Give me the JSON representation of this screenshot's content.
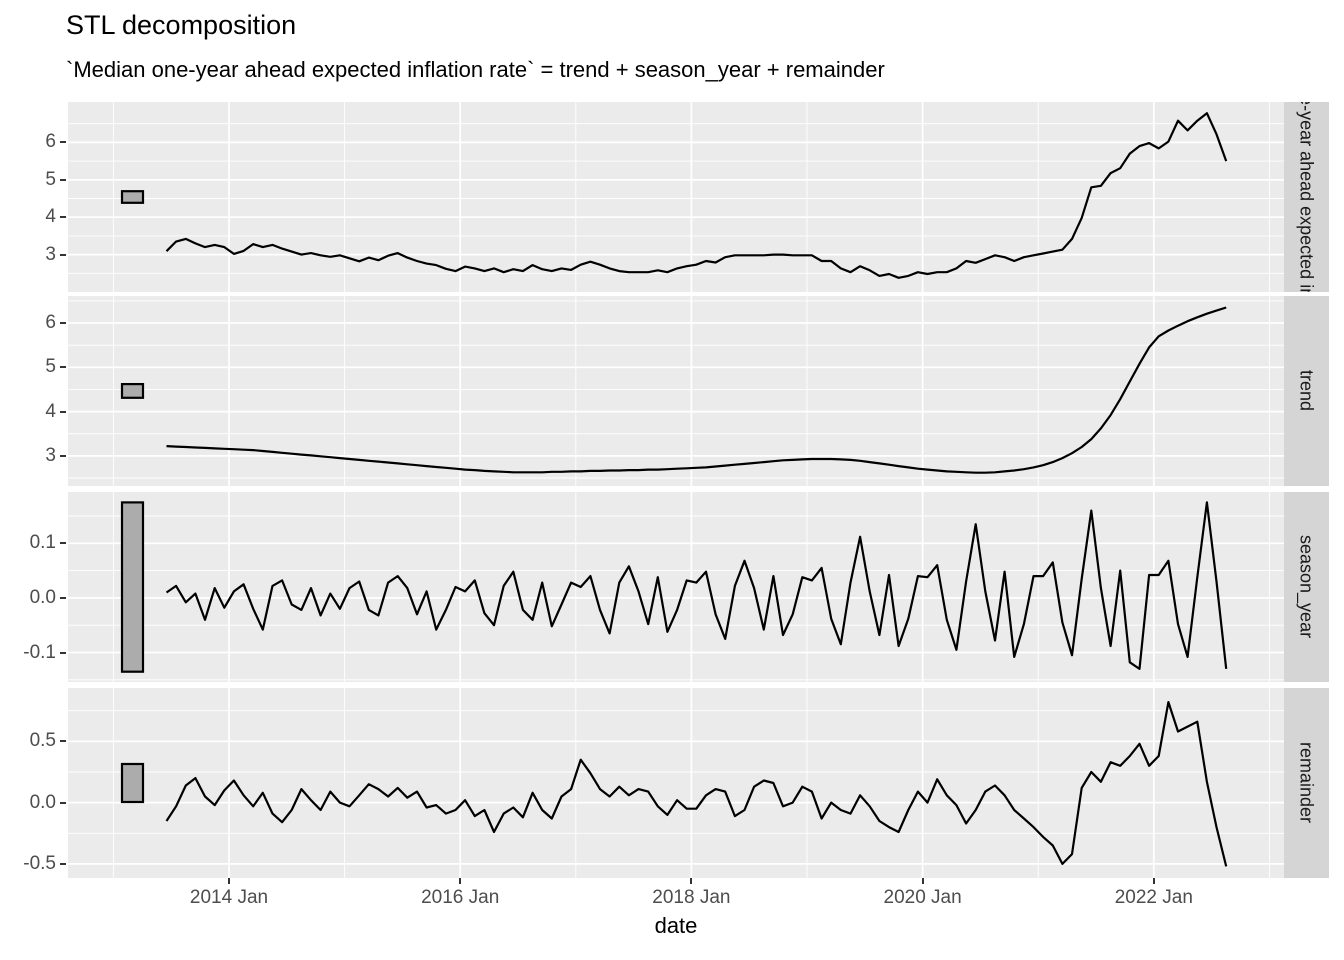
{
  "title": "STL decomposition",
  "subtitle": "`Median one-year ahead expected inflation rate` = trend + season_year + remainder",
  "x_axis": {
    "label": "date",
    "tick_labels": [
      "2014 Jan",
      "2016 Jan",
      "2018 Jan",
      "2020 Jan",
      "2022 Jan"
    ],
    "tick_years": [
      2014,
      2016,
      2018,
      2020,
      2022
    ],
    "minor_years": [
      2013,
      2015,
      2017,
      2019,
      2021,
      2023
    ]
  },
  "colors": {
    "panel_background": "#ebebeb",
    "grid": "#ffffff",
    "strip_background": "#d5d5d5",
    "series_line": "#000000",
    "scale_bar_fill": "#acacac",
    "scale_bar_stroke": "#000000",
    "axis_text": "#4d4d4d",
    "text": "#000000"
  },
  "chart_data": {
    "type": "line",
    "x_start": "2013-06",
    "frequency": "monthly",
    "n_points": 111,
    "scale_bar_data_height": 0.31,
    "panels": [
      {
        "name": "observed",
        "strip_label": "Median one-year ahead expected inflation rate",
        "strip_label_visible": "ar ahead expecte",
        "ylim": [
          2.0,
          7.08
        ],
        "y_ticks": [
          {
            "v": 6,
            "label": "6"
          },
          {
            "v": 5,
            "label": "5"
          },
          {
            "v": 4,
            "label": "4"
          },
          {
            "v": 3,
            "label": "3"
          }
        ],
        "y_minor": [
          6.5,
          5.5,
          4.5,
          3.5,
          2.5
        ],
        "values": [
          3.09,
          3.35,
          3.42,
          3.3,
          3.2,
          3.26,
          3.2,
          3.02,
          3.1,
          3.28,
          3.2,
          3.26,
          3.16,
          3.08,
          3.0,
          3.04,
          2.98,
          2.94,
          2.98,
          2.9,
          2.82,
          2.92,
          2.85,
          2.97,
          3.04,
          2.92,
          2.83,
          2.76,
          2.72,
          2.62,
          2.56,
          2.68,
          2.63,
          2.56,
          2.63,
          2.53,
          2.61,
          2.56,
          2.72,
          2.61,
          2.56,
          2.63,
          2.59,
          2.73,
          2.81,
          2.73,
          2.63,
          2.56,
          2.53,
          2.53,
          2.53,
          2.58,
          2.53,
          2.63,
          2.69,
          2.73,
          2.83,
          2.79,
          2.93,
          2.98,
          2.98,
          2.98,
          2.98,
          3.0,
          3.0,
          2.98,
          2.98,
          2.98,
          2.83,
          2.83,
          2.63,
          2.53,
          2.69,
          2.58,
          2.43,
          2.48,
          2.38,
          2.43,
          2.53,
          2.48,
          2.53,
          2.53,
          2.63,
          2.83,
          2.78,
          2.88,
          2.98,
          2.93,
          2.83,
          2.93,
          2.98,
          3.03,
          3.08,
          3.13,
          3.42,
          3.98,
          4.8,
          4.84,
          5.18,
          5.31,
          5.7,
          5.9,
          5.98,
          5.84,
          6.02,
          6.58,
          6.32,
          6.58,
          6.78,
          6.22,
          5.5
        ]
      },
      {
        "name": "trend",
        "strip_label": "trend",
        "strip_label_visible": "trend",
        "ylim": [
          2.32,
          6.61
        ],
        "y_ticks": [
          {
            "v": 6,
            "label": "6"
          },
          {
            "v": 5,
            "label": "5"
          },
          {
            "v": 4,
            "label": "4"
          },
          {
            "v": 3,
            "label": "3"
          }
        ],
        "y_minor": [
          6.5,
          5.5,
          4.5,
          3.5,
          2.5
        ],
        "values": [
          3.22,
          3.21,
          3.2,
          3.19,
          3.18,
          3.17,
          3.16,
          3.15,
          3.14,
          3.13,
          3.11,
          3.09,
          3.07,
          3.05,
          3.03,
          3.01,
          2.99,
          2.97,
          2.95,
          2.93,
          2.91,
          2.89,
          2.87,
          2.85,
          2.83,
          2.81,
          2.79,
          2.77,
          2.75,
          2.73,
          2.71,
          2.69,
          2.68,
          2.66,
          2.65,
          2.64,
          2.63,
          2.63,
          2.63,
          2.63,
          2.64,
          2.64,
          2.65,
          2.65,
          2.66,
          2.66,
          2.67,
          2.67,
          2.68,
          2.68,
          2.69,
          2.69,
          2.7,
          2.71,
          2.72,
          2.73,
          2.74,
          2.76,
          2.78,
          2.8,
          2.82,
          2.84,
          2.86,
          2.88,
          2.9,
          2.91,
          2.92,
          2.93,
          2.93,
          2.93,
          2.92,
          2.91,
          2.89,
          2.86,
          2.83,
          2.8,
          2.77,
          2.74,
          2.71,
          2.69,
          2.67,
          2.65,
          2.64,
          2.63,
          2.62,
          2.62,
          2.63,
          2.65,
          2.67,
          2.7,
          2.74,
          2.79,
          2.86,
          2.95,
          3.06,
          3.2,
          3.38,
          3.62,
          3.92,
          4.28,
          4.68,
          5.08,
          5.45,
          5.7,
          5.83,
          5.94,
          6.04,
          6.13,
          6.21,
          6.28,
          6.35
        ]
      },
      {
        "name": "season_year",
        "strip_label": "season_year",
        "strip_label_visible": "season_year",
        "ylim": [
          -0.154,
          0.194
        ],
        "y_ticks": [
          {
            "v": 0.1,
            "label": "0.1"
          },
          {
            "v": 0,
            "label": "0.0"
          },
          {
            "v": -0.1,
            "label": "-0.1"
          }
        ],
        "y_minor": [
          0.15,
          0.05,
          -0.05,
          -0.15
        ],
        "values": [
          0.01,
          0.022,
          -0.008,
          0.008,
          -0.04,
          0.018,
          -0.018,
          0.012,
          0.025,
          -0.02,
          -0.058,
          0.022,
          0.032,
          -0.012,
          -0.022,
          0.018,
          -0.032,
          0.008,
          -0.02,
          0.018,
          0.03,
          -0.022,
          -0.032,
          0.028,
          0.04,
          0.018,
          -0.03,
          0.012,
          -0.058,
          -0.022,
          0.02,
          0.012,
          0.032,
          -0.028,
          -0.05,
          0.022,
          0.048,
          -0.022,
          -0.04,
          0.028,
          -0.052,
          -0.012,
          0.028,
          0.02,
          0.04,
          -0.022,
          -0.065,
          0.028,
          0.058,
          0.012,
          -0.048,
          0.038,
          -0.062,
          -0.022,
          0.032,
          0.028,
          0.048,
          -0.03,
          -0.075,
          0.022,
          0.068,
          0.018,
          -0.058,
          0.04,
          -0.068,
          -0.03,
          0.038,
          0.032,
          0.055,
          -0.038,
          -0.085,
          0.028,
          0.112,
          0.012,
          -0.068,
          0.042,
          -0.088,
          -0.038,
          0.04,
          0.038,
          0.06,
          -0.04,
          -0.095,
          0.03,
          0.135,
          0.012,
          -0.078,
          0.048,
          -0.108,
          -0.048,
          0.04,
          0.04,
          0.065,
          -0.045,
          -0.105,
          0.035,
          0.16,
          0.018,
          -0.088,
          0.05,
          -0.118,
          -0.13,
          0.042,
          0.042,
          0.068,
          -0.048,
          -0.108,
          0.038,
          0.175,
          0.03,
          -0.13
        ]
      },
      {
        "name": "remainder",
        "strip_label": "remainder",
        "strip_label_visible": "remainder",
        "ylim": [
          -0.615,
          0.935
        ],
        "y_ticks": [
          {
            "v": 0.5,
            "label": "0.5"
          },
          {
            "v": 0,
            "label": "0.0"
          },
          {
            "v": -0.5,
            "label": "-0.5"
          }
        ],
        "y_minor": [
          0.75,
          0.25,
          -0.25
        ],
        "values": [
          -0.15,
          -0.03,
          0.14,
          0.2,
          0.05,
          -0.02,
          0.1,
          0.18,
          0.06,
          -0.03,
          0.08,
          -0.09,
          -0.16,
          -0.06,
          0.11,
          0.02,
          -0.06,
          0.09,
          0.0,
          -0.03,
          0.06,
          0.15,
          0.11,
          0.05,
          0.12,
          0.04,
          0.09,
          -0.04,
          -0.02,
          -0.09,
          -0.06,
          0.02,
          -0.11,
          -0.06,
          -0.24,
          -0.09,
          -0.04,
          -0.12,
          0.08,
          -0.06,
          -0.13,
          0.05,
          0.11,
          0.35,
          0.24,
          0.11,
          0.05,
          0.13,
          0.06,
          0.11,
          0.09,
          -0.03,
          -0.1,
          0.02,
          -0.05,
          -0.05,
          0.06,
          0.11,
          0.09,
          -0.11,
          -0.06,
          0.13,
          0.18,
          0.16,
          -0.03,
          0.0,
          0.13,
          0.09,
          -0.13,
          0.0,
          -0.06,
          -0.09,
          0.06,
          -0.03,
          -0.15,
          -0.2,
          -0.24,
          -0.06,
          0.09,
          0.0,
          0.19,
          0.06,
          -0.02,
          -0.17,
          -0.06,
          0.09,
          0.14,
          0.06,
          -0.06,
          -0.13,
          -0.2,
          -0.28,
          -0.35,
          -0.5,
          -0.42,
          0.12,
          0.25,
          0.17,
          0.33,
          0.3,
          0.38,
          0.48,
          0.3,
          0.38,
          0.82,
          0.58,
          0.62,
          0.66,
          0.17,
          -0.2,
          -0.52
        ]
      }
    ]
  }
}
